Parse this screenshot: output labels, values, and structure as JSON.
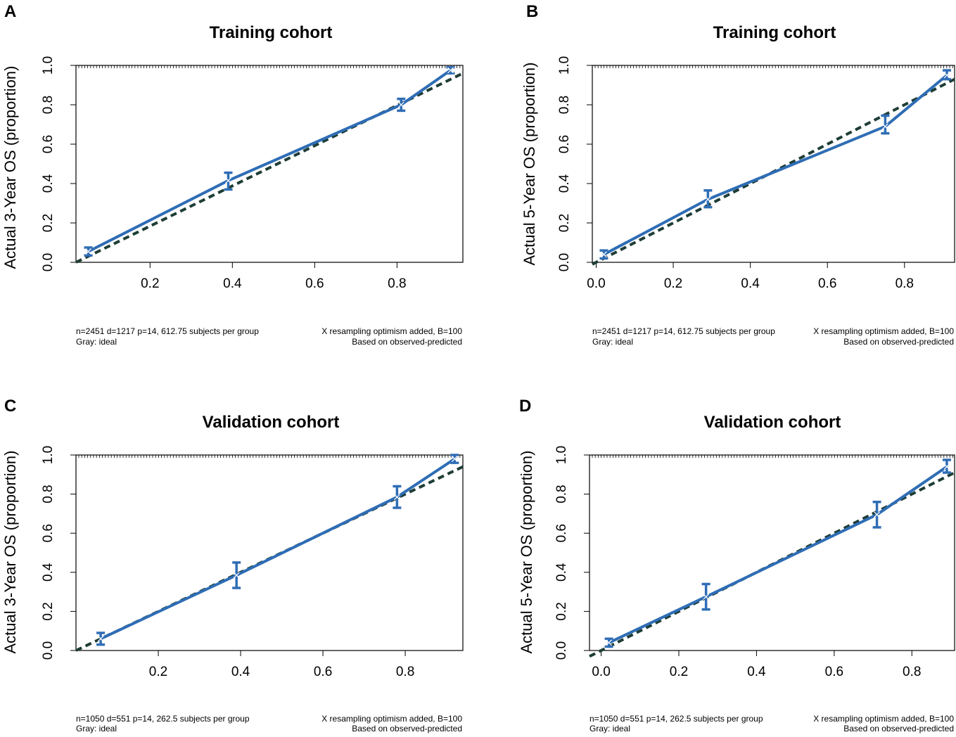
{
  "colors": {
    "calibration": "#2f6db5",
    "ideal": "#1e3d36",
    "axis": "#000000"
  },
  "chart_data": [
    {
      "panel": "A",
      "type": "line",
      "title": "Training cohort",
      "ylabel": "Actual 3-Year OS (proportion)",
      "xlabel": "",
      "xlim": [
        0.02,
        0.96
      ],
      "ylim": [
        0.0,
        1.0
      ],
      "x_ticks": [
        "0.2",
        "0.4",
        "0.6",
        "0.8"
      ],
      "y_ticks": [
        "0.0",
        "0.2",
        "0.4",
        "0.6",
        "0.8",
        "1.0"
      ],
      "series": [
        {
          "name": "Calibration (observed)",
          "points": [
            {
              "x": 0.05,
              "y": 0.055,
              "lo": 0.035,
              "hi": 0.075
            },
            {
              "x": 0.39,
              "y": 0.415,
              "lo": 0.37,
              "hi": 0.455
            },
            {
              "x": 0.81,
              "y": 0.8,
              "lo": 0.77,
              "hi": 0.83
            },
            {
              "x": 0.93,
              "y": 0.975,
              "lo": 0.96,
              "hi": 0.99
            }
          ]
        },
        {
          "name": "Ideal",
          "x": [
            0.02,
            0.96
          ],
          "y": [
            0.0,
            0.96
          ]
        }
      ],
      "footnote": {
        "left1": "n=2451 d=1217 p=14, 612.75 subjects per group",
        "right1": "X resampling optimism added, B=100",
        "left2": "Gray: ideal",
        "right2": "Based on observed-predicted"
      }
    },
    {
      "panel": "B",
      "type": "line",
      "title": "Training cohort",
      "ylabel": "Actual 5-Year OS (proportion)",
      "xlabel": "",
      "xlim": [
        -0.01,
        0.93
      ],
      "ylim": [
        0.0,
        1.0
      ],
      "x_ticks": [
        "0.0",
        "0.2",
        "0.4",
        "0.6",
        "0.8"
      ],
      "y_ticks": [
        "0.0",
        "0.2",
        "0.4",
        "0.6",
        "0.8",
        "1.0"
      ],
      "series": [
        {
          "name": "Calibration (observed)",
          "points": [
            {
              "x": 0.02,
              "y": 0.04,
              "lo": 0.02,
              "hi": 0.06
            },
            {
              "x": 0.29,
              "y": 0.32,
              "lo": 0.28,
              "hi": 0.365
            },
            {
              "x": 0.75,
              "y": 0.69,
              "lo": 0.655,
              "hi": 0.745
            },
            {
              "x": 0.91,
              "y": 0.95,
              "lo": 0.93,
              "hi": 0.975
            }
          ]
        },
        {
          "name": "Ideal",
          "x": [
            -0.01,
            0.93
          ],
          "y": [
            -0.01,
            0.93
          ]
        }
      ],
      "footnote": {
        "left1": "n=2451 d=1217 p=14, 612.75 subjects per group",
        "right1": "X resampling optimism added, B=100",
        "left2": "Gray: ideal",
        "right2": "Based on observed-predicted"
      }
    },
    {
      "panel": "C",
      "type": "line",
      "title": "Validation cohort",
      "ylabel": "Actual 3-Year OS (proportion)",
      "xlabel": "",
      "xlim": [
        0.0,
        0.94
      ],
      "ylim": [
        0.0,
        1.0
      ],
      "x_ticks": [
        "0.2",
        "0.4",
        "0.6",
        "0.8"
      ],
      "y_ticks": [
        "0.0",
        "0.2",
        "0.4",
        "0.6",
        "0.8",
        "1.0"
      ],
      "series": [
        {
          "name": "Calibration (observed)",
          "points": [
            {
              "x": 0.06,
              "y": 0.06,
              "lo": 0.03,
              "hi": 0.09
            },
            {
              "x": 0.39,
              "y": 0.385,
              "lo": 0.32,
              "hi": 0.45
            },
            {
              "x": 0.78,
              "y": 0.785,
              "lo": 0.73,
              "hi": 0.84
            },
            {
              "x": 0.92,
              "y": 0.98,
              "lo": 0.96,
              "hi": 1.0
            }
          ]
        },
        {
          "name": "Ideal",
          "x": [
            0.0,
            0.94
          ],
          "y": [
            0.0,
            0.94
          ]
        }
      ],
      "footnote": {
        "left1": "n=1050 d=551 p=14, 262.5 subjects per group",
        "right1": "X resampling optimism added, B=100",
        "left2": "Gray: ideal",
        "right2": "Based on observed-predicted"
      }
    },
    {
      "panel": "D",
      "type": "line",
      "title": "Validation cohort",
      "ylabel": "Actual 5-Year OS (proportion)",
      "xlabel": "",
      "xlim": [
        -0.03,
        0.91
      ],
      "ylim": [
        0.0,
        1.0
      ],
      "x_ticks": [
        "0.0",
        "0.2",
        "0.4",
        "0.6",
        "0.8"
      ],
      "y_ticks": [
        "0.0",
        "0.2",
        "0.4",
        "0.6",
        "0.8",
        "1.0"
      ],
      "series": [
        {
          "name": "Calibration (observed)",
          "points": [
            {
              "x": 0.02,
              "y": 0.04,
              "lo": 0.02,
              "hi": 0.06
            },
            {
              "x": 0.27,
              "y": 0.275,
              "lo": 0.21,
              "hi": 0.34
            },
            {
              "x": 0.71,
              "y": 0.695,
              "lo": 0.63,
              "hi": 0.76
            },
            {
              "x": 0.89,
              "y": 0.94,
              "lo": 0.91,
              "hi": 0.975
            }
          ]
        },
        {
          "name": "Ideal",
          "x": [
            -0.03,
            0.91
          ],
          "y": [
            -0.03,
            0.91
          ]
        }
      ],
      "footnote": {
        "left1": "n=1050 d=551 p=14, 262.5 subjects per group",
        "right1": "X resampling optimism added, B=100",
        "left2": "Gray: ideal",
        "right2": "Based on observed-predicted"
      }
    }
  ]
}
